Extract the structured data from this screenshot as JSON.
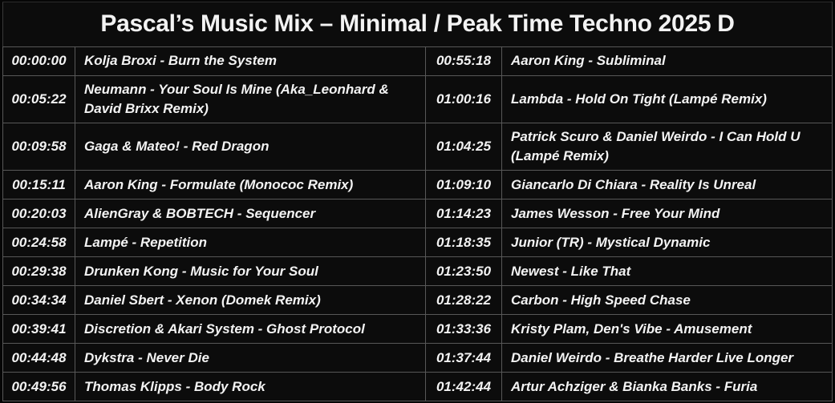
{
  "title": "Pascal’s Music Mix – Minimal / Peak Time Techno 2025 D",
  "colors": {
    "background": "#0c0c0c",
    "grid_border": "#585858",
    "outer_border": "#3a3a3a",
    "text": "#f3f3f3"
  },
  "tracklist": {
    "rows": [
      {
        "left_time": "00:00:00",
        "left_track": "Kolja Broxi - Burn the System",
        "right_time": "00:55:18",
        "right_track": "Aaron King - Subliminal"
      },
      {
        "left_time": "00:05:22",
        "left_track": "Neumann - Your Soul Is Mine (Aka_Leonhard & David Brixx Remix)",
        "right_time": "01:00:16",
        "right_track": "Lambda - Hold On Tight (Lampé Remix)"
      },
      {
        "left_time": "00:09:58",
        "left_track": "Gaga & Mateo! - Red Dragon",
        "right_time": "01:04:25",
        "right_track": "Patrick Scuro & Daniel Weirdo - I Can Hold U (Lampé Remix)"
      },
      {
        "left_time": "00:15:11",
        "left_track": "Aaron King - Formulate (Monococ Remix)",
        "right_time": "01:09:10",
        "right_track": "Giancarlo Di Chiara - Reality Is Unreal"
      },
      {
        "left_time": "00:20:03",
        "left_track": "AlienGray & BOBTECH - Sequencer",
        "right_time": "01:14:23",
        "right_track": "James Wesson - Free Your Mind"
      },
      {
        "left_time": "00:24:58",
        "left_track": "Lampé - Repetition",
        "right_time": "01:18:35",
        "right_track": "Junior (TR) - Mystical Dynamic"
      },
      {
        "left_time": "00:29:38",
        "left_track": "Drunken Kong - Music for Your Soul",
        "right_time": "01:23:50",
        "right_track": "Newest - Like That"
      },
      {
        "left_time": "00:34:34",
        "left_track": "Daniel Sbert - Xenon (Domek Remix)",
        "right_time": "01:28:22",
        "right_track": "Carbon - High Speed Chase"
      },
      {
        "left_time": "00:39:41",
        "left_track": "Discretion & Akari System - Ghost Protocol",
        "right_time": "01:33:36",
        "right_track": "Kristy Plam, Den's Vibe - Amusement"
      },
      {
        "left_time": "00:44:48",
        "left_track": "Dykstra - Never Die",
        "right_time": "01:37:44",
        "right_track": "Daniel Weirdo - Breathe Harder Live Longer"
      },
      {
        "left_time": "00:49:56",
        "left_track": "Thomas Klipps - Body Rock",
        "right_time": "01:42:44",
        "right_track": "Artur Achziger & Bianka Banks - Furia"
      }
    ]
  }
}
